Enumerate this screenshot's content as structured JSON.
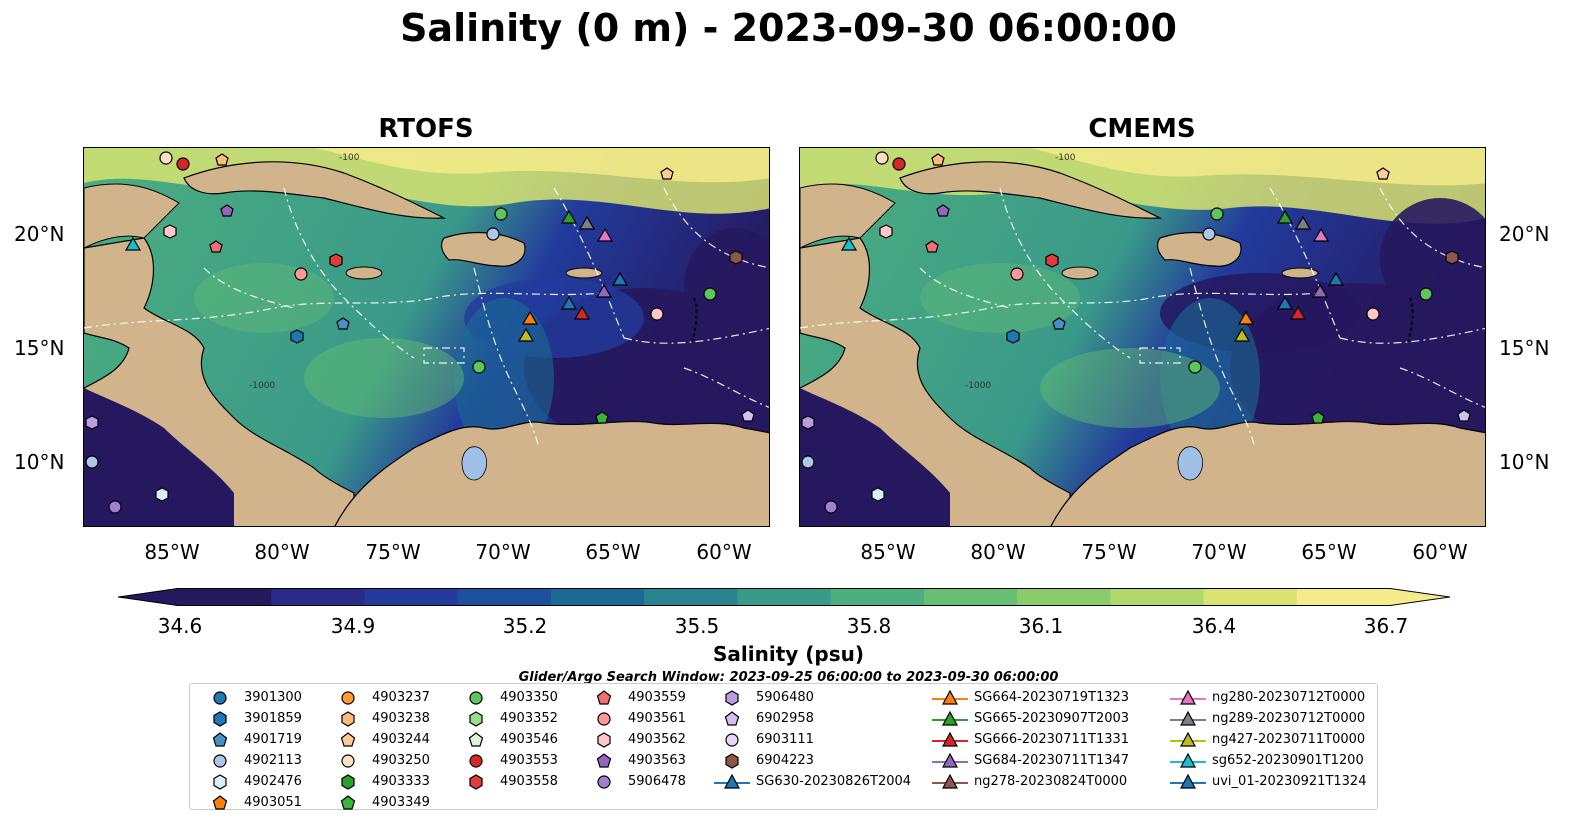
{
  "title": "Salinity (0 m) - 2023-09-30 06:00:00",
  "panels": [
    {
      "title": "RTOFS"
    },
    {
      "title": "CMEMS"
    }
  ],
  "lat_ticks": [
    "20°N",
    "15°N",
    "10°N"
  ],
  "lon_ticks": [
    "85°W",
    "80°W",
    "75°W",
    "70°W",
    "65°W",
    "60°W"
  ],
  "colorbar": {
    "label": "Salinity (psu)",
    "ticks": [
      "34.6",
      "34.9",
      "35.2",
      "35.5",
      "35.8",
      "36.1",
      "36.4",
      "36.7"
    ],
    "min": 34.6,
    "max": 36.7,
    "colors": [
      "#26185f",
      "#2a2a8a",
      "#223b9c",
      "#1c4f9c",
      "#1a6a95",
      "#2a8490",
      "#3a9a89",
      "#4cae7f",
      "#67bf72",
      "#8acb6b",
      "#b1d86d",
      "#d8e371",
      "#f6ec8b"
    ]
  },
  "contour_labels": [
    "-1000",
    "-100"
  ],
  "search_window": "Glider/Argo Search Window: 2023-09-25 06:00:00 to 2023-09-30 06:00:00",
  "legend": [
    {
      "label": "3901300",
      "marker": "circle",
      "color": "#1f77b4"
    },
    {
      "label": "3901859",
      "marker": "hexagon",
      "color": "#1f77b4"
    },
    {
      "label": "4901719",
      "marker": "pentagon",
      "color": "#4a90c8"
    },
    {
      "label": "4902113",
      "marker": "circle",
      "color": "#aec7e8"
    },
    {
      "label": "4902476",
      "marker": "hexagon",
      "color": "#d6eef8"
    },
    {
      "label": "4903051",
      "marker": "pentagon",
      "color": "#ff7f0e"
    },
    {
      "label": "4903237",
      "marker": "circle",
      "color": "#ff9a2e"
    },
    {
      "label": "4903238",
      "marker": "hexagon",
      "color": "#ffbb78"
    },
    {
      "label": "4903244",
      "marker": "pentagon",
      "color": "#ffcc99"
    },
    {
      "label": "4903250",
      "marker": "circle",
      "color": "#ffe0c0"
    },
    {
      "label": "4903333",
      "marker": "hexagon",
      "color": "#2ca02c"
    },
    {
      "label": "4903349",
      "marker": "pentagon",
      "color": "#3cb43c"
    },
    {
      "label": "4903350",
      "marker": "circle",
      "color": "#5cc85c"
    },
    {
      "label": "4903352",
      "marker": "hexagon",
      "color": "#98df8a"
    },
    {
      "label": "4903546",
      "marker": "pentagon",
      "color": "#dff6d6"
    },
    {
      "label": "4903553",
      "marker": "circle",
      "color": "#d62728"
    },
    {
      "label": "4903558",
      "marker": "hexagon",
      "color": "#e03a3c"
    },
    {
      "label": "4903559",
      "marker": "pentagon",
      "color": "#f07070"
    },
    {
      "label": "4903561",
      "marker": "circle",
      "color": "#ff9896"
    },
    {
      "label": "4903562",
      "marker": "hexagon",
      "color": "#ffc8c6"
    },
    {
      "label": "4903563",
      "marker": "pentagon",
      "color": "#9467bd"
    },
    {
      "label": "5906478",
      "marker": "circle",
      "color": "#a27fd0"
    },
    {
      "label": "5906480",
      "marker": "hexagon",
      "color": "#b89ddf"
    },
    {
      "label": "6902958",
      "marker": "pentagon",
      "color": "#d4c0f0"
    },
    {
      "label": "6903111",
      "marker": "circle",
      "color": "#e6d6f8"
    },
    {
      "label": "6904223",
      "marker": "hexagon",
      "color": "#8c564b"
    },
    {
      "label": "SG630-20230826T2004",
      "marker": "triangle-line",
      "color": "#1f77b4"
    },
    {
      "label": "SG664-20230719T1323",
      "marker": "triangle-line",
      "color": "#ff7f0e"
    },
    {
      "label": "SG665-20230907T2003",
      "marker": "triangle-line",
      "color": "#2ca02c"
    },
    {
      "label": "SG666-20230711T1331",
      "marker": "triangle-line",
      "color": "#d62728"
    },
    {
      "label": "SG684-20230711T1347",
      "marker": "triangle-line",
      "color": "#9467bd"
    },
    {
      "label": "ng278-20230824T0000",
      "marker": "triangle-line",
      "color": "#8c564b"
    },
    {
      "label": "ng280-20230712T0000",
      "marker": "triangle-line",
      "color": "#e377c2"
    },
    {
      "label": "ng289-20230712T0000",
      "marker": "triangle-line",
      "color": "#7f7f7f"
    },
    {
      "label": "ng427-20230711T0000",
      "marker": "triangle-line",
      "color": "#bcbd22"
    },
    {
      "label": "sg652-20230901T1200",
      "marker": "triangle-line",
      "color": "#17becf"
    },
    {
      "label": "uvi_01-20230921T1324",
      "marker": "triangle-line",
      "color": "#1f77b4"
    }
  ],
  "colors": {
    "land": "#d2b48c",
    "lake": "#a0c0e8",
    "low_salinity": "#26185f",
    "mid_salinity": "#4cae7f",
    "high_salinity": "#f6ec8b"
  }
}
